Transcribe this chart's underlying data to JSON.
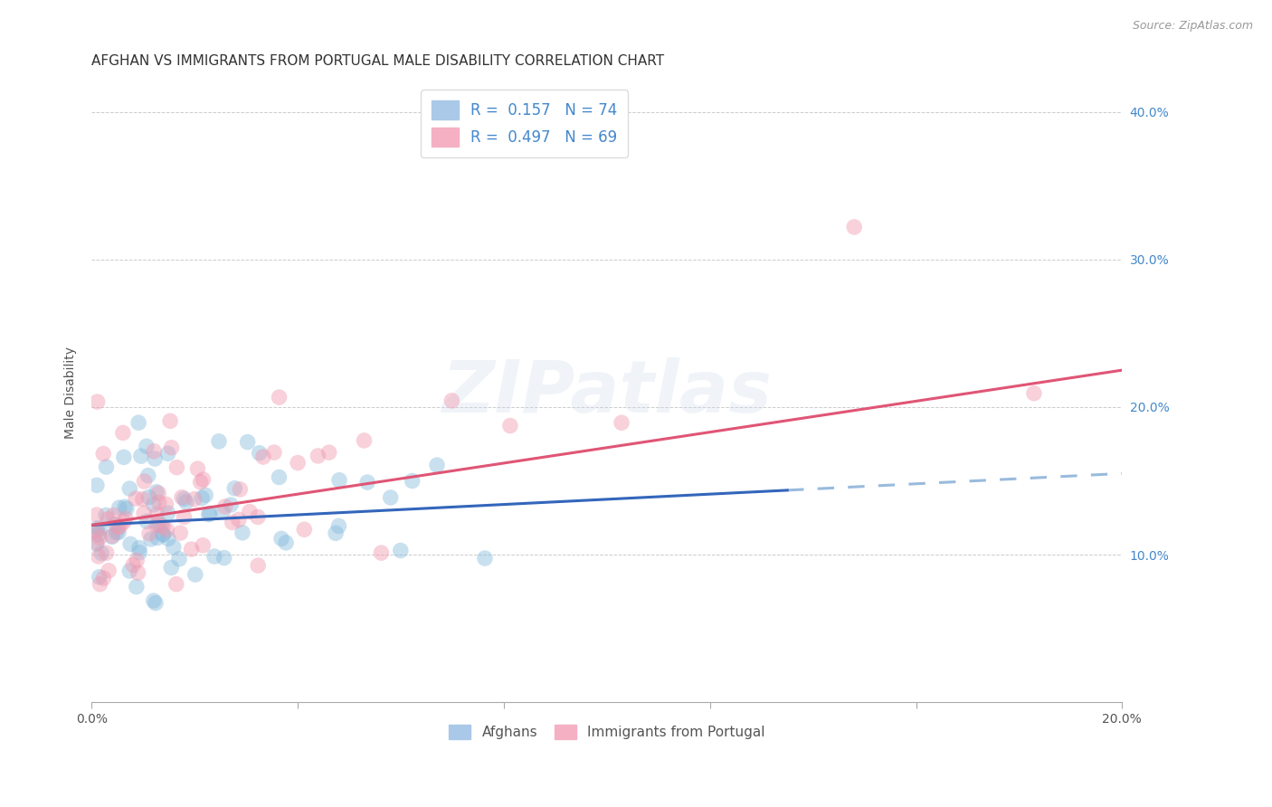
{
  "title": "AFGHAN VS IMMIGRANTS FROM PORTUGAL MALE DISABILITY CORRELATION CHART",
  "source": "Source: ZipAtlas.com",
  "ylabel": "Male Disability",
  "xlim": [
    0.0,
    0.2
  ],
  "ylim": [
    0.0,
    0.42
  ],
  "afghan_color": "#88bbdd",
  "portugal_color": "#f099b0",
  "trend_afghan_color": "#3366bb",
  "trend_portugal_color": "#e05575",
  "trend_dashed_color": "#99bbdd",
  "watermark_text": "ZIPatlas",
  "R_afghan": 0.157,
  "N_afghan": 74,
  "R_portugal": 0.497,
  "N_portugal": 69,
  "legend_top_labels": [
    "R =  0.157   N = 74",
    "R =  0.497   N = 69"
  ],
  "legend_bottom": [
    "Afghans",
    "Immigrants from Portugal"
  ],
  "legend_patch_colors": [
    "#aac8e8",
    "#f5b0c4"
  ],
  "ytick_labels": [
    "10.0%",
    "20.0%",
    "30.0%",
    "40.0%"
  ],
  "ytick_values": [
    0.1,
    0.2,
    0.3,
    0.4
  ],
  "xtick_values": [
    0.0,
    0.04,
    0.08,
    0.12,
    0.16,
    0.2
  ],
  "xtick_labels": [
    "0.0%",
    "",
    "",
    "",
    "",
    "20.0%"
  ],
  "af_trend_start_x": 0.0,
  "af_trend_end_x": 0.2,
  "af_trend_solid_end_x": 0.135,
  "af_trend_y0": 0.12,
  "af_trend_y1": 0.155,
  "pt_trend_y0": 0.12,
  "pt_trend_y1": 0.225
}
